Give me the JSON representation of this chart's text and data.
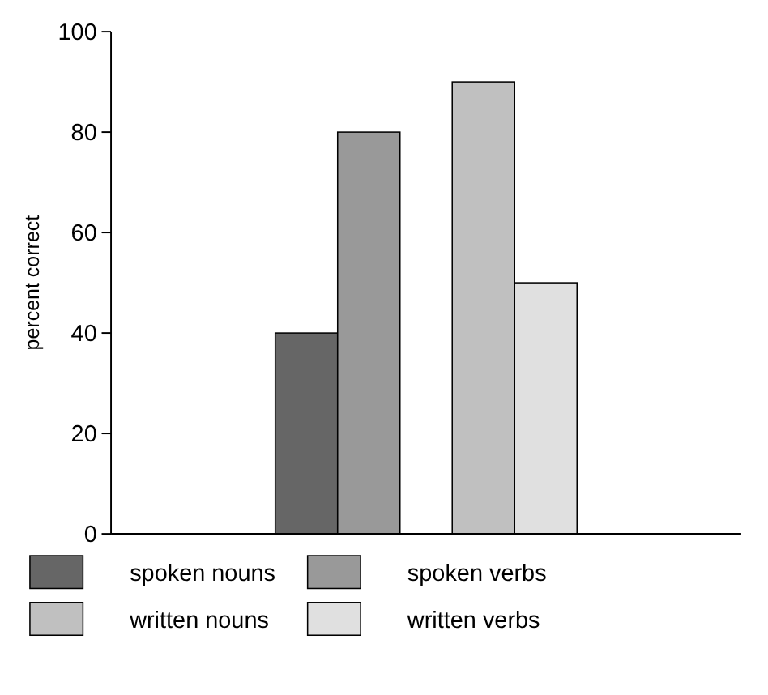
{
  "chart_data": {
    "type": "bar",
    "ylabel": "percent correct",
    "categories": [
      null,
      null
    ],
    "series": [
      {
        "name": "spoken nouns",
        "color": "#666666",
        "values": [
          40,
          null
        ]
      },
      {
        "name": "spoken verbs",
        "color": "#999999",
        "values": [
          80,
          null
        ]
      },
      {
        "name": "written nouns",
        "color": "#c0c0c0",
        "values": [
          null,
          90
        ]
      },
      {
        "name": "written verbs",
        "color": "#e0e0e0",
        "values": [
          null,
          50
        ]
      }
    ],
    "ylim": [
      0,
      100
    ],
    "yticks": [
      0,
      20,
      40,
      60,
      80,
      100
    ],
    "grid": false,
    "legend": "bottom"
  }
}
